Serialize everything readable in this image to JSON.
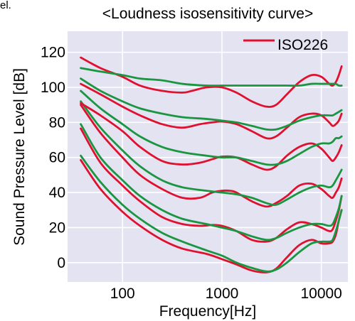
{
  "top_fragment": "el.",
  "chart_data": {
    "type": "line",
    "title": "<Loudness isosensitivity curve>",
    "xlabel": "Frequency[Hz]",
    "ylabel": "Sound Pressure Level [dB]",
    "x_scale": "log",
    "xlim": [
      28,
      18500
    ],
    "ylim": [
      -11,
      132
    ],
    "xticks": [
      100,
      1000,
      10000
    ],
    "xtick_labels": [
      "100",
      "1000",
      "10000"
    ],
    "yticks": [
      0,
      20,
      40,
      60,
      80,
      100,
      120
    ],
    "ytick_labels": [
      "0",
      "20",
      "40",
      "60",
      "80",
      "100",
      "120"
    ],
    "grid": true,
    "legend": {
      "position": "top-right",
      "entries": [
        {
          "label": "ISO226",
          "color": "#e0102f"
        }
      ]
    },
    "colors": {
      "background": "#e3e3f2",
      "grid": "#ffffff",
      "iso226": "#e0102f",
      "other": "#1a9641"
    },
    "series": [
      {
        "name": "ISO226",
        "color": "#e0102f",
        "points": [
          [
            38,
            58.5
          ],
          [
            60,
            42
          ],
          [
            100,
            29
          ],
          [
            150,
            21
          ],
          [
            250,
            13
          ],
          [
            400,
            8
          ],
          [
            700,
            5
          ],
          [
            1000,
            2
          ],
          [
            1400,
            -1
          ],
          [
            2000,
            -4.5
          ],
          [
            2800,
            -5.5
          ],
          [
            3500,
            -3.5
          ],
          [
            4500,
            3
          ],
          [
            6000,
            10
          ],
          [
            8000,
            13
          ],
          [
            10000,
            11
          ],
          [
            12000,
            11
          ],
          [
            13000,
            12
          ],
          [
            14000,
            16
          ],
          [
            15000,
            24
          ],
          [
            16000,
            30
          ]
        ]
      },
      {
        "color": "#1a9641",
        "points": [
          [
            38,
            61
          ],
          [
            60,
            46
          ],
          [
            100,
            33
          ],
          [
            150,
            25
          ],
          [
            250,
            17
          ],
          [
            400,
            12
          ],
          [
            700,
            7
          ],
          [
            1000,
            4
          ],
          [
            1400,
            0
          ],
          [
            2000,
            -3
          ],
          [
            2800,
            -5
          ],
          [
            3500,
            -4
          ],
          [
            4500,
            0
          ],
          [
            6000,
            6
          ],
          [
            8000,
            11
          ],
          [
            10000,
            12
          ],
          [
            12000,
            12
          ],
          [
            13000,
            13
          ],
          [
            14000,
            18
          ],
          [
            15000,
            24
          ],
          [
            16000,
            30
          ]
        ]
      },
      {
        "color": "#e0102f",
        "points": [
          [
            38,
            76.5
          ],
          [
            60,
            57
          ],
          [
            100,
            44
          ],
          [
            150,
            35
          ],
          [
            250,
            26
          ],
          [
            400,
            22
          ],
          [
            600,
            21
          ],
          [
            800,
            21.5
          ],
          [
            1000,
            21
          ],
          [
            1400,
            18
          ],
          [
            2000,
            13
          ],
          [
            2800,
            12
          ],
          [
            3500,
            14
          ],
          [
            4500,
            19
          ],
          [
            6000,
            23
          ],
          [
            8000,
            22
          ],
          [
            10000,
            20
          ],
          [
            12000,
            18
          ],
          [
            13000,
            19
          ],
          [
            14000,
            24
          ],
          [
            15000,
            30
          ],
          [
            16000,
            38
          ]
        ]
      },
      {
        "color": "#1a9641",
        "points": [
          [
            38,
            79
          ],
          [
            60,
            60
          ],
          [
            100,
            47
          ],
          [
            150,
            38
          ],
          [
            250,
            30
          ],
          [
            400,
            25
          ],
          [
            700,
            22
          ],
          [
            1000,
            20
          ],
          [
            1400,
            18
          ],
          [
            2000,
            15
          ],
          [
            2800,
            13
          ],
          [
            3500,
            14
          ],
          [
            4500,
            17
          ],
          [
            6000,
            20
          ],
          [
            8000,
            22
          ],
          [
            10000,
            22
          ],
          [
            12000,
            21
          ],
          [
            13000,
            22
          ],
          [
            14000,
            26
          ],
          [
            15000,
            31
          ],
          [
            16000,
            38
          ]
        ]
      },
      {
        "color": "#e0102f",
        "points": [
          [
            38,
            90
          ],
          [
            60,
            74
          ],
          [
            100,
            60
          ],
          [
            150,
            50
          ],
          [
            250,
            42
          ],
          [
            400,
            37
          ],
          [
            600,
            37
          ],
          [
            800,
            40
          ],
          [
            1000,
            41
          ],
          [
            1200,
            41
          ],
          [
            1400,
            40
          ],
          [
            2000,
            35
          ],
          [
            2800,
            32
          ],
          [
            3500,
            34
          ],
          [
            4500,
            38
          ],
          [
            6000,
            44
          ],
          [
            8000,
            45
          ],
          [
            10000,
            42
          ],
          [
            12000,
            38
          ],
          [
            13000,
            37
          ],
          [
            14000,
            40
          ],
          [
            15000,
            43
          ],
          [
            16000,
            48
          ]
        ]
      },
      {
        "color": "#1a9641",
        "points": [
          [
            38,
            92
          ],
          [
            60,
            77
          ],
          [
            100,
            64
          ],
          [
            150,
            55
          ],
          [
            250,
            47
          ],
          [
            400,
            43
          ],
          [
            700,
            41
          ],
          [
            1000,
            40
          ],
          [
            1400,
            39
          ],
          [
            2000,
            37
          ],
          [
            2800,
            34
          ],
          [
            3500,
            33
          ],
          [
            4500,
            36
          ],
          [
            6000,
            40
          ],
          [
            8000,
            43
          ],
          [
            10000,
            44
          ],
          [
            12000,
            43
          ],
          [
            13000,
            44
          ],
          [
            14000,
            47
          ],
          [
            15000,
            50
          ],
          [
            16000,
            53
          ]
        ]
      },
      {
        "color": "#e0102f",
        "points": [
          [
            38,
            91
          ],
          [
            60,
            84
          ],
          [
            100,
            75
          ],
          [
            150,
            66
          ],
          [
            250,
            58
          ],
          [
            400,
            56
          ],
          [
            600,
            57
          ],
          [
            800,
            59
          ],
          [
            1000,
            60.5
          ],
          [
            1400,
            60
          ],
          [
            2000,
            56
          ],
          [
            2800,
            53
          ],
          [
            3500,
            55
          ],
          [
            4500,
            61
          ],
          [
            6000,
            66
          ],
          [
            8000,
            68
          ],
          [
            10000,
            65
          ],
          [
            12000,
            60
          ],
          [
            13000,
            58
          ],
          [
            14000,
            60
          ],
          [
            15000,
            63
          ],
          [
            16000,
            67
          ]
        ]
      },
      {
        "color": "#1a9641",
        "points": [
          [
            38,
            98
          ],
          [
            60,
            88
          ],
          [
            100,
            79
          ],
          [
            150,
            72
          ],
          [
            250,
            66
          ],
          [
            400,
            63
          ],
          [
            700,
            61
          ],
          [
            1000,
            60
          ],
          [
            1400,
            60
          ],
          [
            2000,
            58
          ],
          [
            2800,
            56
          ],
          [
            3500,
            56
          ],
          [
            4500,
            58
          ],
          [
            6000,
            62
          ],
          [
            8000,
            66
          ],
          [
            10000,
            68
          ],
          [
            12000,
            68
          ],
          [
            13000,
            69
          ],
          [
            14000,
            71
          ],
          [
            15000,
            71
          ],
          [
            16000,
            72
          ]
        ]
      },
      {
        "color": "#e0102f",
        "points": [
          [
            38,
            102
          ],
          [
            60,
            96
          ],
          [
            100,
            89
          ],
          [
            150,
            84
          ],
          [
            250,
            79
          ],
          [
            400,
            77
          ],
          [
            600,
            79
          ],
          [
            800,
            80
          ],
          [
            1000,
            80.5
          ],
          [
            1400,
            79
          ],
          [
            2000,
            75
          ],
          [
            2800,
            71
          ],
          [
            3500,
            72
          ],
          [
            4500,
            77
          ],
          [
            6000,
            83
          ],
          [
            8000,
            85
          ],
          [
            10000,
            84
          ],
          [
            12000,
            80
          ],
          [
            13000,
            78
          ],
          [
            14000,
            79
          ],
          [
            15000,
            81
          ],
          [
            16000,
            85
          ]
        ]
      },
      {
        "color": "#1a9641",
        "points": [
          [
            38,
            105
          ],
          [
            60,
            98
          ],
          [
            100,
            92
          ],
          [
            150,
            88
          ],
          [
            250,
            85
          ],
          [
            400,
            83
          ],
          [
            700,
            82
          ],
          [
            1000,
            81
          ],
          [
            1400,
            80
          ],
          [
            2000,
            78
          ],
          [
            2800,
            76
          ],
          [
            3500,
            76
          ],
          [
            4500,
            78
          ],
          [
            6000,
            81
          ],
          [
            8000,
            83
          ],
          [
            10000,
            84
          ],
          [
            12000,
            84
          ],
          [
            13000,
            84
          ],
          [
            14000,
            85
          ],
          [
            15000,
            86
          ],
          [
            16000,
            87
          ]
        ]
      },
      {
        "color": "#e0102f",
        "points": [
          [
            38,
            117
          ],
          [
            60,
            111
          ],
          [
            100,
            106
          ],
          [
            150,
            101
          ],
          [
            250,
            98
          ],
          [
            400,
            97
          ],
          [
            500,
            98
          ],
          [
            700,
            100
          ],
          [
            1000,
            100
          ],
          [
            1400,
            97
          ],
          [
            2000,
            92
          ],
          [
            2800,
            89
          ],
          [
            3500,
            90
          ],
          [
            4500,
            96
          ],
          [
            6000,
            103
          ],
          [
            8000,
            107
          ],
          [
            10000,
            106
          ],
          [
            12000,
            102
          ],
          [
            13000,
            101
          ],
          [
            14000,
            103
          ],
          [
            15000,
            107
          ],
          [
            16000,
            112
          ]
        ]
      },
      {
        "color": "#1a9641",
        "points": [
          [
            38,
            111
          ],
          [
            60,
            109
          ],
          [
            100,
            107
          ],
          [
            150,
            105
          ],
          [
            250,
            104
          ],
          [
            400,
            102
          ],
          [
            700,
            101
          ],
          [
            1000,
            101
          ],
          [
            1400,
            101
          ],
          [
            2000,
            101
          ],
          [
            2800,
            101
          ],
          [
            3500,
            101
          ],
          [
            4500,
            101
          ],
          [
            6000,
            101
          ],
          [
            8000,
            102
          ],
          [
            10000,
            102
          ],
          [
            12000,
            102
          ],
          [
            13000,
            102
          ],
          [
            14000,
            102
          ],
          [
            15000,
            101
          ],
          [
            16000,
            101
          ]
        ]
      }
    ]
  }
}
